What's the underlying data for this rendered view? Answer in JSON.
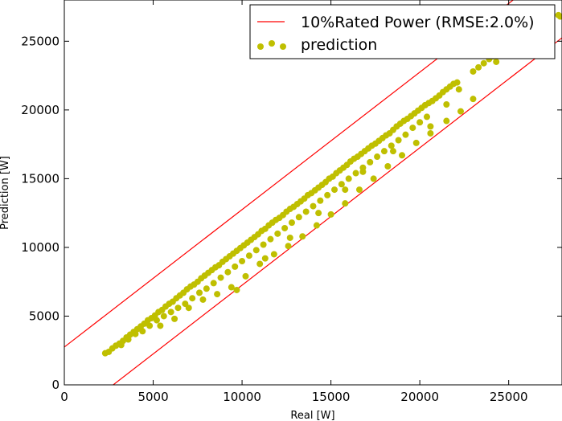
{
  "chart_data": {
    "type": "scatter",
    "xlabel": "Real [W]",
    "ylabel": "Prediction [W]",
    "xlim": [
      0,
      28000
    ],
    "ylim": [
      0,
      28000
    ],
    "xticks": [
      0,
      5000,
      10000,
      15000,
      20000,
      25000
    ],
    "yticks": [
      0,
      5000,
      10000,
      15000,
      20000,
      25000
    ],
    "xtick_labels": [
      "0",
      "5000",
      "10000",
      "15000",
      "20000",
      "25000"
    ],
    "ytick_labels": [
      "0",
      "5000",
      "10000",
      "15000",
      "20000",
      "25000"
    ],
    "grid": false,
    "legend_position": "top-right",
    "legend": {
      "band_label": "10%Rated Power (RMSE:2.0%)",
      "scatter_label": "prediction"
    },
    "band": {
      "color": "#ff0000",
      "upper_intercept": 2750,
      "lower_intercept": -2750,
      "slope": 1
    },
    "scatter": {
      "color": "#bfbf00",
      "points": [
        [
          2300,
          2300
        ],
        [
          2500,
          2400
        ],
        [
          2700,
          2650
        ],
        [
          2900,
          2850
        ],
        [
          3100,
          3000
        ],
        [
          3300,
          3200
        ],
        [
          3500,
          3450
        ],
        [
          3700,
          3650
        ],
        [
          3900,
          3850
        ],
        [
          4100,
          4050
        ],
        [
          4300,
          4250
        ],
        [
          4500,
          4450
        ],
        [
          4700,
          4700
        ],
        [
          4900,
          4850
        ],
        [
          5100,
          5050
        ],
        [
          5300,
          5300
        ],
        [
          5500,
          5450
        ],
        [
          5700,
          5700
        ],
        [
          5900,
          5900
        ],
        [
          6100,
          6050
        ],
        [
          6300,
          6300
        ],
        [
          6500,
          6500
        ],
        [
          6700,
          6700
        ],
        [
          6900,
          6950
        ],
        [
          7100,
          7150
        ],
        [
          7300,
          7300
        ],
        [
          7500,
          7500
        ],
        [
          7700,
          7750
        ],
        [
          7900,
          7950
        ],
        [
          8100,
          8150
        ],
        [
          8300,
          8350
        ],
        [
          8500,
          8550
        ],
        [
          8700,
          8700
        ],
        [
          8900,
          8950
        ],
        [
          9100,
          9150
        ],
        [
          9300,
          9350
        ],
        [
          9500,
          9550
        ],
        [
          9700,
          9750
        ],
        [
          9900,
          9950
        ],
        [
          10100,
          10150
        ],
        [
          10300,
          10350
        ],
        [
          10500,
          10550
        ],
        [
          10700,
          10750
        ],
        [
          10900,
          10950
        ],
        [
          11100,
          11200
        ],
        [
          11300,
          11350
        ],
        [
          11500,
          11600
        ],
        [
          11700,
          11800
        ],
        [
          11900,
          12000
        ],
        [
          12100,
          12150
        ],
        [
          12300,
          12350
        ],
        [
          12500,
          12600
        ],
        [
          12700,
          12800
        ],
        [
          12900,
          12950
        ],
        [
          13100,
          13150
        ],
        [
          13300,
          13350
        ],
        [
          13500,
          13550
        ],
        [
          13700,
          13800
        ],
        [
          13900,
          13950
        ],
        [
          14100,
          14150
        ],
        [
          14300,
          14350
        ],
        [
          14500,
          14550
        ],
        [
          14700,
          14750
        ],
        [
          14900,
          15000
        ],
        [
          15100,
          15150
        ],
        [
          15300,
          15400
        ],
        [
          15500,
          15600
        ],
        [
          15700,
          15800
        ],
        [
          15900,
          16000
        ],
        [
          16100,
          16250
        ],
        [
          16300,
          16450
        ],
        [
          16500,
          16600
        ],
        [
          16700,
          16800
        ],
        [
          16900,
          17000
        ],
        [
          17100,
          17200
        ],
        [
          17300,
          17400
        ],
        [
          17500,
          17550
        ],
        [
          17700,
          17750
        ],
        [
          17900,
          17950
        ],
        [
          18100,
          18150
        ],
        [
          18300,
          18300
        ],
        [
          18500,
          18550
        ],
        [
          18700,
          18800
        ],
        [
          18900,
          19000
        ],
        [
          19100,
          19200
        ],
        [
          19300,
          19350
        ],
        [
          19500,
          19550
        ],
        [
          19700,
          19750
        ],
        [
          19900,
          19950
        ],
        [
          20100,
          20150
        ],
        [
          20300,
          20350
        ],
        [
          20500,
          20500
        ],
        [
          20700,
          20650
        ],
        [
          20900,
          20850
        ],
        [
          21100,
          21050
        ],
        [
          21300,
          21300
        ],
        [
          21500,
          21500
        ],
        [
          21700,
          21700
        ],
        [
          21900,
          21900
        ],
        [
          22100,
          22000
        ],
        [
          23000,
          22800
        ],
        [
          23300,
          23100
        ],
        [
          23600,
          23400
        ],
        [
          23900,
          23700
        ],
        [
          24100,
          23900
        ],
        [
          24400,
          24200
        ],
        [
          24700,
          24500
        ],
        [
          25000,
          24800
        ],
        [
          25300,
          25100
        ],
        [
          25600,
          25400
        ],
        [
          25900,
          25700
        ],
        [
          26200,
          26000
        ],
        [
          26500,
          26300
        ],
        [
          26800,
          26600
        ],
        [
          27200,
          26800
        ],
        [
          27900,
          26800
        ],
        [
          3200,
          2900
        ],
        [
          3600,
          3300
        ],
        [
          4000,
          3700
        ],
        [
          4400,
          3900
        ],
        [
          4800,
          4300
        ],
        [
          5200,
          4700
        ],
        [
          5600,
          5000
        ],
        [
          6000,
          5300
        ],
        [
          6400,
          5600
        ],
        [
          6800,
          5900
        ],
        [
          7200,
          6300
        ],
        [
          7600,
          6700
        ],
        [
          8000,
          7000
        ],
        [
          8400,
          7400
        ],
        [
          8800,
          7800
        ],
        [
          9200,
          8200
        ],
        [
          9600,
          8600
        ],
        [
          10000,
          9000
        ],
        [
          10400,
          9400
        ],
        [
          10800,
          9800
        ],
        [
          11200,
          10200
        ],
        [
          11600,
          10600
        ],
        [
          12000,
          11000
        ],
        [
          12400,
          11400
        ],
        [
          12800,
          11800
        ],
        [
          13200,
          12200
        ],
        [
          13600,
          12600
        ],
        [
          14000,
          13000
        ],
        [
          14400,
          13400
        ],
        [
          14800,
          13800
        ],
        [
          15200,
          14200
        ],
        [
          15600,
          14600
        ],
        [
          16000,
          15000
        ],
        [
          16400,
          15400
        ],
        [
          16800,
          15800
        ],
        [
          17200,
          16200
        ],
        [
          17600,
          16600
        ],
        [
          18000,
          17000
        ],
        [
          18400,
          17400
        ],
        [
          18800,
          17800
        ],
        [
          19200,
          18200
        ],
        [
          19600,
          18700
        ],
        [
          20000,
          19100
        ],
        [
          20400,
          19500
        ],
        [
          5400,
          4300
        ],
        [
          6200,
          4800
        ],
        [
          7000,
          5600
        ],
        [
          7800,
          6200
        ],
        [
          8600,
          6600
        ],
        [
          9400,
          7100
        ],
        [
          10200,
          7900
        ],
        [
          11000,
          8800
        ],
        [
          11800,
          9500
        ],
        [
          12600,
          10100
        ],
        [
          13400,
          10800
        ],
        [
          14200,
          11600
        ],
        [
          15000,
          12400
        ],
        [
          15800,
          13200
        ],
        [
          16600,
          14200
        ],
        [
          17400,
          15000
        ],
        [
          18200,
          15900
        ],
        [
          19000,
          16700
        ],
        [
          19800,
          17600
        ],
        [
          20600,
          18300
        ],
        [
          21500,
          19200
        ],
        [
          22300,
          19900
        ],
        [
          23000,
          20800
        ],
        [
          9700,
          6900
        ],
        [
          11300,
          9200
        ],
        [
          12700,
          10700
        ],
        [
          14300,
          12500
        ],
        [
          15800,
          14200
        ],
        [
          16800,
          15500
        ],
        [
          18500,
          17000
        ],
        [
          20600,
          18800
        ],
        [
          21500,
          20400
        ],
        [
          22200,
          21500
        ],
        [
          24300,
          23500
        ],
        [
          25800,
          24500
        ],
        [
          27800,
          26900
        ]
      ]
    }
  }
}
